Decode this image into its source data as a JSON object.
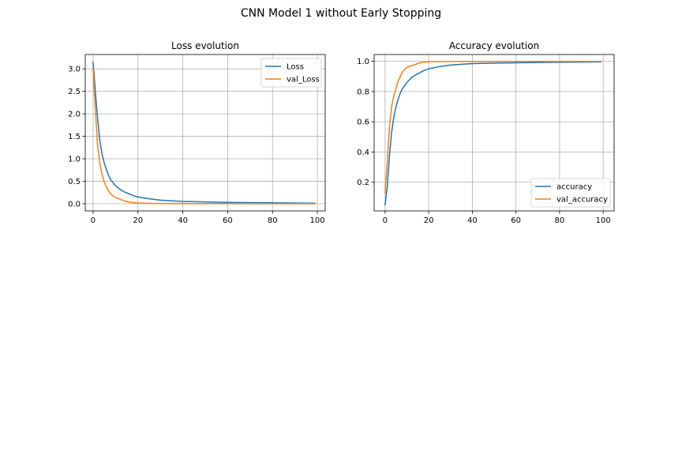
{
  "figure": {
    "suptitle": "CNN Model 1 without Early Stopping"
  },
  "chart_data": [
    {
      "type": "line",
      "title": "Loss evolution",
      "xlabel": "",
      "ylabel": "",
      "xlim": [
        -3.5,
        103.5
      ],
      "ylim": [
        -0.16,
        3.32
      ],
      "xticks": [
        0,
        20,
        40,
        60,
        80,
        100
      ],
      "yticks": [
        0.0,
        0.5,
        1.0,
        1.5,
        2.0,
        2.5,
        3.0
      ],
      "ytick_labels": [
        "0.0",
        "0.5",
        "1.0",
        "1.5",
        "2.0",
        "2.5",
        "3.0"
      ],
      "grid": true,
      "legend_position": "top-right",
      "series": [
        {
          "name": "Loss",
          "color": "#1f77b4",
          "x": [
            0,
            1,
            2,
            3,
            4,
            5,
            6,
            7,
            8,
            10,
            12,
            14,
            16,
            18,
            20,
            25,
            30,
            35,
            40,
            50,
            60,
            70,
            80,
            90,
            99
          ],
          "y": [
            3.15,
            2.5,
            1.9,
            1.4,
            1.1,
            0.9,
            0.75,
            0.62,
            0.52,
            0.4,
            0.32,
            0.26,
            0.22,
            0.18,
            0.15,
            0.11,
            0.08,
            0.065,
            0.05,
            0.04,
            0.03,
            0.025,
            0.02,
            0.015,
            0.012
          ]
        },
        {
          "name": "val_Loss",
          "color": "#ff7f0e",
          "x": [
            0,
            1,
            2,
            3,
            4,
            5,
            6,
            7,
            8,
            10,
            12,
            14,
            16,
            18,
            20,
            25,
            30,
            40,
            50,
            60,
            70,
            80,
            90,
            99
          ],
          "y": [
            3.0,
            2.1,
            1.3,
            0.9,
            0.65,
            0.48,
            0.36,
            0.27,
            0.21,
            0.14,
            0.1,
            0.06,
            0.04,
            0.025,
            0.015,
            0.008,
            0.005,
            0.003,
            0.002,
            0.002,
            0.001,
            0.001,
            0.001,
            0.001
          ]
        }
      ]
    },
    {
      "type": "line",
      "title": "Accuracy evolution",
      "xlabel": "",
      "ylabel": "",
      "xlim": [
        -5,
        105
      ],
      "ylim": [
        0.01,
        1.045
      ],
      "xticks": [
        0,
        20,
        40,
        60,
        80,
        100
      ],
      "yticks": [
        0.2,
        0.4,
        0.6,
        0.8,
        1.0
      ],
      "ytick_labels": [
        "0.2",
        "0.4",
        "0.6",
        "0.8",
        "1.0"
      ],
      "grid": true,
      "legend_position": "bottom-right",
      "series": [
        {
          "name": "accuracy",
          "color": "#1f77b4",
          "x": [
            0,
            1,
            2,
            3,
            4,
            5,
            6,
            7,
            8,
            10,
            12,
            14,
            16,
            18,
            20,
            25,
            30,
            35,
            40,
            50,
            60,
            70,
            80,
            90,
            99
          ],
          "y": [
            0.05,
            0.17,
            0.37,
            0.53,
            0.63,
            0.7,
            0.75,
            0.79,
            0.82,
            0.86,
            0.89,
            0.91,
            0.925,
            0.94,
            0.95,
            0.965,
            0.975,
            0.98,
            0.985,
            0.988,
            0.99,
            0.992,
            0.994,
            0.995,
            0.996
          ]
        },
        {
          "name": "val_accuracy",
          "color": "#ff7f0e",
          "x": [
            0,
            1,
            2,
            3,
            4,
            5,
            6,
            7,
            8,
            10,
            12,
            14,
            16,
            18,
            20,
            25,
            30,
            40,
            50,
            60,
            70,
            80,
            90,
            99
          ],
          "y": [
            0.13,
            0.33,
            0.56,
            0.7,
            0.77,
            0.82,
            0.87,
            0.9,
            0.93,
            0.96,
            0.97,
            0.98,
            0.99,
            0.995,
            0.997,
            0.998,
            0.999,
            0.999,
            0.999,
            0.999,
            0.999,
            0.999,
            0.999,
            0.999
          ]
        }
      ]
    }
  ]
}
